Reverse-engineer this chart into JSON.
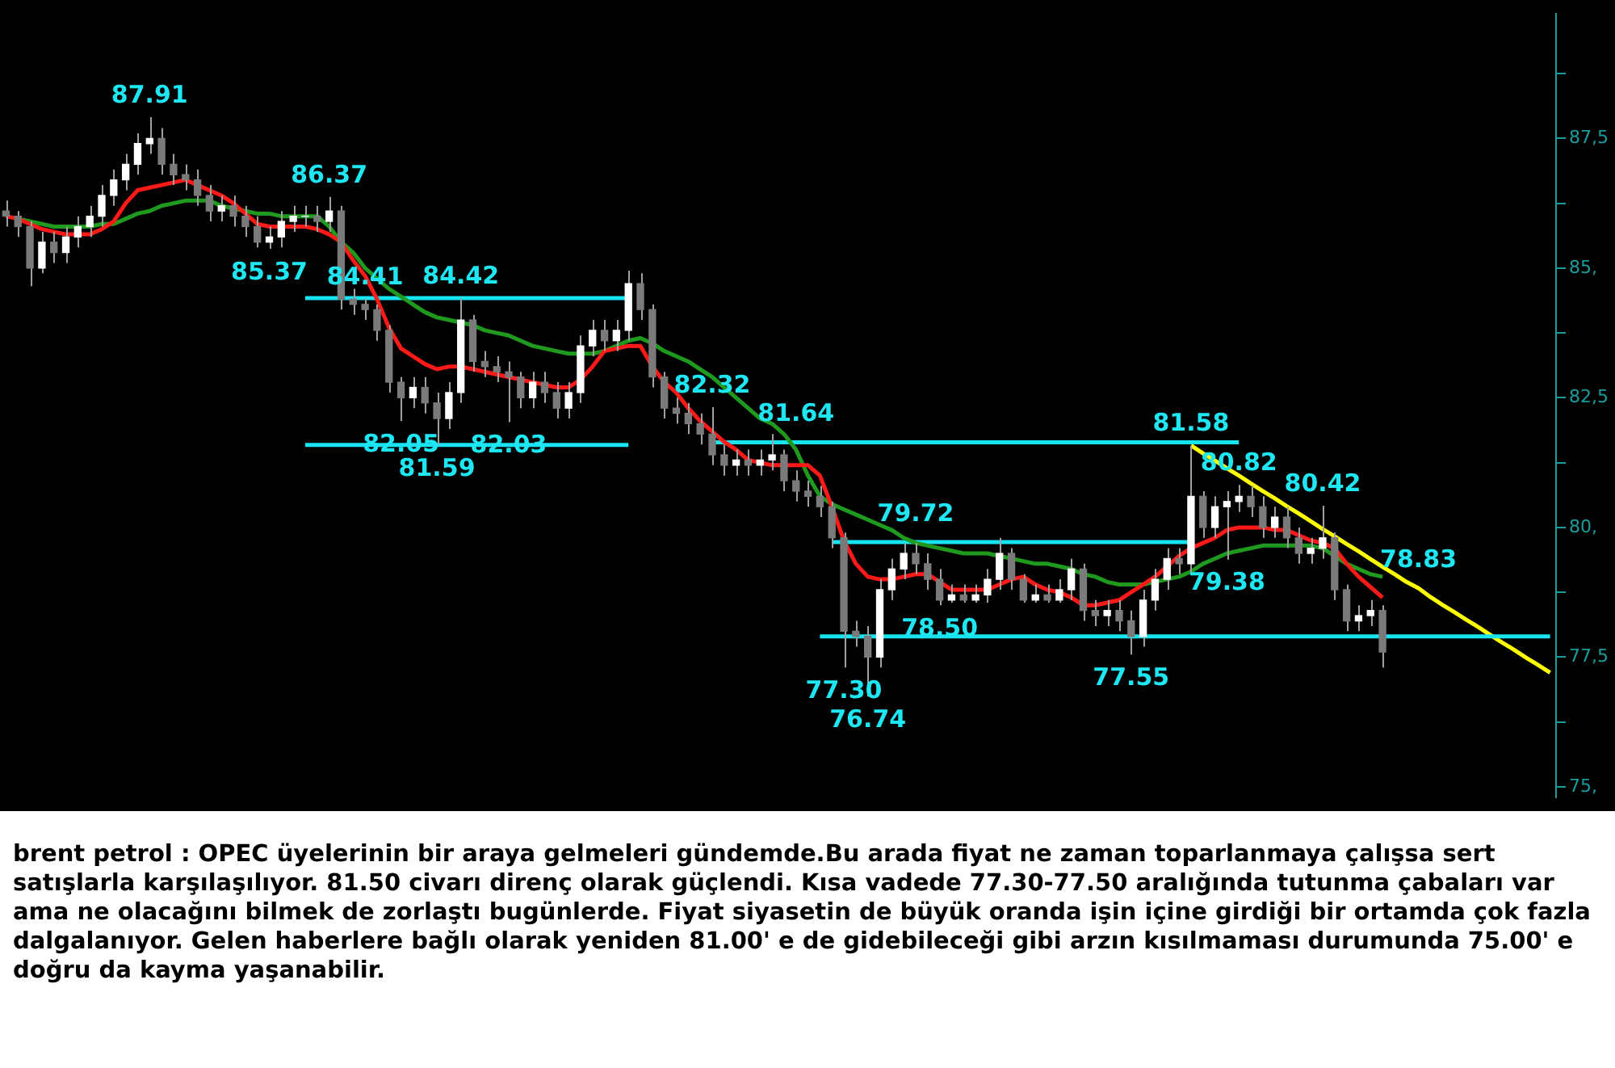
{
  "chart_data": {
    "type": "candlestick",
    "categories": [
      null,
      null,
      null,
      null,
      null,
      null,
      null,
      null,
      null,
      null,
      null,
      null,
      null,
      null,
      null,
      null,
      null,
      null,
      null,
      null,
      null,
      null,
      null,
      null,
      null,
      null,
      null,
      null,
      null,
      null,
      null,
      null,
      null,
      null,
      null,
      null,
      null,
      null,
      null,
      null,
      null,
      null,
      null,
      null,
      null,
      null,
      null,
      null,
      null,
      null,
      null,
      null,
      null,
      null,
      null,
      null,
      null,
      null,
      null,
      null,
      null,
      null,
      null,
      null,
      null,
      null,
      null,
      null,
      null,
      null,
      null,
      null,
      null,
      null,
      null,
      null,
      null,
      null,
      null,
      null,
      null,
      null,
      null,
      null,
      null,
      null,
      null,
      null,
      null,
      null,
      null,
      null,
      null,
      null,
      null,
      null,
      null,
      null,
      null,
      null,
      null,
      null,
      null,
      null,
      null,
      null,
      null,
      null,
      null,
      null,
      null,
      null,
      null,
      null,
      null,
      null,
      null,
      null,
      null,
      null,
      null,
      null,
      null,
      null,
      null,
      null,
      null,
      null,
      null,
      null
    ],
    "colors": [
      "#7a7a7a",
      "#7a7a7a",
      "#7a7a7a",
      "#ffffff",
      "#7a7a7a",
      "#ffffff",
      "#ffffff",
      "#ffffff",
      "#ffffff",
      "#ffffff",
      "#ffffff",
      "#ffffff",
      "#ffffff",
      "#7a7a7a",
      "#7a7a7a",
      "#7a7a7a",
      "#7a7a7a",
      "#7a7a7a",
      "#ffffff",
      "#7a7a7a",
      "#7a7a7a",
      "#7a7a7a",
      "#ffffff",
      "#ffffff",
      "#ffffff",
      "#ffffff",
      "#7a7a7a",
      "#ffffff",
      "#7a7a7a",
      "#7a7a7a",
      "#7a7a7a",
      "#7a7a7a",
      "#7a7a7a",
      "#7a7a7a",
      "#ffffff",
      "#7a7a7a",
      "#7a7a7a",
      "#ffffff",
      "#ffffff",
      "#7a7a7a",
      "#7a7a7a",
      "#7a7a7a",
      "#7a7a7a",
      "#7a7a7a",
      "#ffffff",
      "#7a7a7a",
      "#7a7a7a",
      "#ffffff",
      "#ffffff",
      "#ffffff",
      "#7a7a7a",
      "#ffffff",
      "#ffffff",
      "#7a7a7a",
      "#7a7a7a",
      "#7a7a7a",
      "#7a7a7a",
      "#7a7a7a",
      "#7a7a7a",
      "#7a7a7a",
      "#7a7a7a",
      "#ffffff",
      "#7a7a7a",
      "#ffffff",
      "#ffffff",
      "#7a7a7a",
      "#7a7a7a",
      "#7a7a7a",
      "#7a7a7a",
      "#7a7a7a",
      "#7a7a7a",
      "#7a7a7a",
      "#7a7a7a",
      "#ffffff",
      "#ffffff",
      "#ffffff",
      "#7a7a7a",
      "#7a7a7a",
      "#7a7a7a",
      "#ffffff",
      "#7a7a7a",
      "#ffffff",
      "#ffffff",
      "#ffffff",
      "#7a7a7a",
      "#7a7a7a",
      "#ffffff",
      "#7a7a7a",
      "#ffffff",
      "#ffffff",
      "#7a7a7a",
      "#7a7a7a",
      "#ffffff",
      "#7a7a7a",
      "#7a7a7a",
      "#ffffff",
      "#ffffff",
      "#ffffff",
      "#7a7a7a",
      "#ffffff",
      "#7a7a7a",
      "#ffffff",
      "#ffffff",
      "#ffffff",
      "#7a7a7a",
      "#7a7a7a",
      "#ffffff",
      "#7a7a7a",
      "#7a7a7a",
      "#ffffff",
      "#ffffff",
      "#7a7a7a",
      "#7a7a7a",
      "#ffffff",
      "#ffffff",
      "#7a7a7a",
      null,
      null,
      null,
      null,
      null,
      null,
      null,
      null,
      null,
      null,
      null,
      null,
      null,
      null
    ],
    "ohlc": [
      [
        86.1,
        86.3,
        85.8,
        86.0
      ],
      [
        86.0,
        86.1,
        85.6,
        85.8
      ],
      [
        85.8,
        85.9,
        84.65,
        85.0
      ],
      [
        85.0,
        85.7,
        84.9,
        85.5
      ],
      [
        85.5,
        85.7,
        85.1,
        85.3
      ],
      [
        85.3,
        85.8,
        85.1,
        85.6
      ],
      [
        85.6,
        86.0,
        85.4,
        85.8
      ],
      [
        85.8,
        86.2,
        85.6,
        86.0
      ],
      [
        86.0,
        86.6,
        85.8,
        86.4
      ],
      [
        86.4,
        86.9,
        86.2,
        86.7
      ],
      [
        86.7,
        87.2,
        86.5,
        87.0
      ],
      [
        87.0,
        87.6,
        86.8,
        87.4
      ],
      [
        87.4,
        87.91,
        87.2,
        87.5
      ],
      [
        87.5,
        87.7,
        86.8,
        87.0
      ],
      [
        87.0,
        87.2,
        86.6,
        86.8
      ],
      [
        86.8,
        87.0,
        86.5,
        86.7
      ],
      [
        86.7,
        86.9,
        86.2,
        86.4
      ],
      [
        86.4,
        86.6,
        85.9,
        86.1
      ],
      [
        86.1,
        86.4,
        85.9,
        86.2
      ],
      [
        86.2,
        86.4,
        85.8,
        86.0
      ],
      [
        86.0,
        86.2,
        85.6,
        85.8
      ],
      [
        85.8,
        86.0,
        85.4,
        85.5
      ],
      [
        85.5,
        85.8,
        85.37,
        85.6
      ],
      [
        85.6,
        86.1,
        85.4,
        85.9
      ],
      [
        85.9,
        86.2,
        85.7,
        86.0
      ],
      [
        86.0,
        86.2,
        85.8,
        86.0
      ],
      [
        86.0,
        86.2,
        85.7,
        85.9
      ],
      [
        85.9,
        86.37,
        85.7,
        86.1
      ],
      [
        86.1,
        86.2,
        84.2,
        84.4
      ],
      [
        84.4,
        84.6,
        84.1,
        84.3
      ],
      [
        84.3,
        84.41,
        84.0,
        84.2
      ],
      [
        84.2,
        84.3,
        83.6,
        83.8
      ],
      [
        83.8,
        83.9,
        82.6,
        82.8
      ],
      [
        82.8,
        82.9,
        82.05,
        82.5
      ],
      [
        82.5,
        82.9,
        82.3,
        82.7
      ],
      [
        82.7,
        82.9,
        82.2,
        82.4
      ],
      [
        82.4,
        82.6,
        81.59,
        82.1
      ],
      [
        82.1,
        82.8,
        81.9,
        82.6
      ],
      [
        82.6,
        84.42,
        82.4,
        84.0
      ],
      [
        84.0,
        84.1,
        83.0,
        83.2
      ],
      [
        83.2,
        83.4,
        82.9,
        83.1
      ],
      [
        83.1,
        83.3,
        82.8,
        83.0
      ],
      [
        83.0,
        83.2,
        82.03,
        82.9
      ],
      [
        82.9,
        83.0,
        82.3,
        82.5
      ],
      [
        82.5,
        83.0,
        82.3,
        82.8
      ],
      [
        82.8,
        83.0,
        82.4,
        82.6
      ],
      [
        82.6,
        82.8,
        82.1,
        82.3
      ],
      [
        82.3,
        82.8,
        82.1,
        82.6
      ],
      [
        82.6,
        83.7,
        82.4,
        83.5
      ],
      [
        83.5,
        84.0,
        83.3,
        83.8
      ],
      [
        83.8,
        84.0,
        83.4,
        83.6
      ],
      [
        83.6,
        84.0,
        83.4,
        83.8
      ],
      [
        83.8,
        84.95,
        83.6,
        84.7
      ],
      [
        84.7,
        84.9,
        84.0,
        84.2
      ],
      [
        84.2,
        84.3,
        82.7,
        82.9
      ],
      [
        82.9,
        83.0,
        82.1,
        82.3
      ],
      [
        82.3,
        82.5,
        82.0,
        82.2
      ],
      [
        82.2,
        82.4,
        81.8,
        82.0
      ],
      [
        82.0,
        82.2,
        81.6,
        81.8
      ],
      [
        81.8,
        82.32,
        81.2,
        81.4
      ],
      [
        81.4,
        81.6,
        81.0,
        81.2
      ],
      [
        81.2,
        81.5,
        81.0,
        81.3
      ],
      [
        81.3,
        81.5,
        81.0,
        81.2
      ],
      [
        81.2,
        81.5,
        81.0,
        81.3
      ],
      [
        81.3,
        81.8,
        81.1,
        81.4
      ],
      [
        81.4,
        81.5,
        80.7,
        80.9
      ],
      [
        80.9,
        81.1,
        80.5,
        80.7
      ],
      [
        80.7,
        80.9,
        80.4,
        80.6
      ],
      [
        80.6,
        80.8,
        80.2,
        80.4
      ],
      [
        80.4,
        80.5,
        79.6,
        79.8
      ],
      [
        79.8,
        79.9,
        77.3,
        78.0
      ],
      [
        78.0,
        78.2,
        77.7,
        77.9
      ],
      [
        77.9,
        78.1,
        76.74,
        77.5
      ],
      [
        77.5,
        79.0,
        77.3,
        78.8
      ],
      [
        78.8,
        79.4,
        78.6,
        79.2
      ],
      [
        79.2,
        79.7,
        79.0,
        79.5
      ],
      [
        79.5,
        79.7,
        79.1,
        79.3
      ],
      [
        79.3,
        79.5,
        78.8,
        79.0
      ],
      [
        79.0,
        79.2,
        78.5,
        78.6
      ],
      [
        78.6,
        78.9,
        78.55,
        78.7
      ],
      [
        78.7,
        78.9,
        78.55,
        78.6
      ],
      [
        78.6,
        78.9,
        78.55,
        78.7
      ],
      [
        78.7,
        79.2,
        78.55,
        79.0
      ],
      [
        79.0,
        79.8,
        78.8,
        79.5
      ],
      [
        79.5,
        79.6,
        78.8,
        79.0
      ],
      [
        79.0,
        79.1,
        78.55,
        78.6
      ],
      [
        78.6,
        78.9,
        78.55,
        78.7
      ],
      [
        78.7,
        78.9,
        78.55,
        78.6
      ],
      [
        78.6,
        79.0,
        78.55,
        78.8
      ],
      [
        78.8,
        79.4,
        78.6,
        79.2
      ],
      [
        79.2,
        79.3,
        78.2,
        78.4
      ],
      [
        78.4,
        78.6,
        78.1,
        78.3
      ],
      [
        78.3,
        78.6,
        78.1,
        78.4
      ],
      [
        78.4,
        78.6,
        78.0,
        78.2
      ],
      [
        78.2,
        78.4,
        77.55,
        77.9
      ],
      [
        77.9,
        78.8,
        77.7,
        78.6
      ],
      [
        78.6,
        79.2,
        78.4,
        79.0
      ],
      [
        79.0,
        79.6,
        78.8,
        79.4
      ],
      [
        79.4,
        79.6,
        79.1,
        79.3
      ],
      [
        79.3,
        81.58,
        79.1,
        80.6
      ],
      [
        80.6,
        80.7,
        79.8,
        80.0
      ],
      [
        80.0,
        80.6,
        79.8,
        80.4
      ],
      [
        80.4,
        80.7,
        79.38,
        80.5
      ],
      [
        80.5,
        80.82,
        80.3,
        80.6
      ],
      [
        80.6,
        80.8,
        80.2,
        80.4
      ],
      [
        80.4,
        80.6,
        79.8,
        80.0
      ],
      [
        80.0,
        80.4,
        79.8,
        80.2
      ],
      [
        80.2,
        80.4,
        79.6,
        79.8
      ],
      [
        79.8,
        80.0,
        79.3,
        79.5
      ],
      [
        79.5,
        79.8,
        79.3,
        79.6
      ],
      [
        79.6,
        80.42,
        79.4,
        79.8
      ],
      [
        79.8,
        79.9,
        78.6,
        78.8
      ],
      [
        78.8,
        78.9,
        78.0,
        78.2
      ],
      [
        78.2,
        78.5,
        78.0,
        78.3
      ],
      [
        78.3,
        78.6,
        78.1,
        78.4
      ],
      [
        78.4,
        78.5,
        77.3,
        77.6
      ],
      null,
      null,
      null,
      null,
      null,
      null,
      null,
      null,
      null,
      null,
      null,
      null,
      null,
      null
    ],
    "value_labels": [
      null,
      null,
      null,
      null,
      null,
      null,
      null,
      null,
      null,
      null,
      null,
      null,
      "87.91",
      null,
      null,
      null,
      null,
      null,
      null,
      null,
      null,
      null,
      "85.37",
      null,
      null,
      null,
      null,
      "86.37",
      null,
      null,
      "84.41",
      null,
      null,
      "82.05",
      null,
      null,
      "81.59",
      null,
      "84.42",
      null,
      null,
      null,
      "82.03",
      null,
      null,
      null,
      null,
      null,
      null,
      null,
      null,
      null,
      null,
      null,
      null,
      null,
      null,
      null,
      null,
      "82.32",
      null,
      null,
      null,
      null,
      null,
      null,
      null,
      null,
      null,
      null,
      "77.30",
      null,
      "76.74",
      null,
      null,
      null,
      null,
      null,
      "78.50",
      null,
      null,
      null,
      null,
      null,
      null,
      null,
      null,
      null,
      null,
      null,
      null,
      null,
      null,
      null,
      "77.55",
      null,
      null,
      null,
      null,
      "81.58",
      null,
      null,
      "79.38",
      "80.82",
      null,
      null,
      null,
      null,
      null,
      null,
      "80.42",
      null,
      null,
      null,
      null,
      null,
      null,
      null,
      null,
      null,
      null,
      null,
      null,
      null,
      null,
      null,
      null,
      null,
      null,
      null
    ],
    "series": [
      {
        "type": "line",
        "color": "#ff1a1a",
        "values": [
          86.0,
          85.95,
          85.85,
          85.75,
          85.7,
          85.65,
          85.65,
          85.65,
          85.75,
          85.9,
          86.25,
          86.5,
          86.55,
          86.6,
          86.65,
          86.7,
          86.6,
          86.5,
          86.4,
          86.25,
          86.05,
          85.85,
          85.8,
          85.8,
          85.8,
          85.8,
          85.75,
          85.65,
          85.5,
          85.15,
          84.85,
          84.4,
          83.85,
          83.45,
          83.3,
          83.15,
          83.05,
          83.1,
          83.1,
          83.05,
          83.0,
          82.95,
          82.9,
          82.85,
          82.8,
          82.75,
          82.7,
          82.7,
          82.85,
          83.1,
          83.4,
          83.45,
          83.5,
          83.5,
          83.1,
          82.8,
          82.6,
          82.3,
          82.05,
          81.85,
          81.65,
          81.5,
          81.3,
          81.25,
          81.2,
          81.2,
          81.2,
          81.2,
          81.0,
          80.4,
          79.75,
          79.3,
          79.05,
          79.0,
          79.0,
          79.05,
          79.1,
          79.1,
          78.95,
          78.8,
          78.8,
          78.8,
          78.8,
          78.9,
          79.0,
          79.05,
          78.9,
          78.8,
          78.75,
          78.65,
          78.5,
          78.5,
          78.55,
          78.6,
          78.75,
          78.9,
          79.05,
          79.25,
          79.45,
          79.6,
          79.7,
          79.8,
          79.95,
          80.0,
          80.0,
          80.0,
          79.95,
          79.95,
          79.85,
          79.75,
          79.7,
          79.6,
          79.3,
          79.05,
          78.85,
          78.65,
          null,
          null,
          null,
          null,
          null,
          null,
          null,
          null,
          null,
          null,
          null,
          null,
          null,
          null
        ]
      },
      {
        "type": "line",
        "color": "#1f9a1f",
        "values": [
          null,
          85.95,
          85.9,
          85.85,
          85.8,
          85.8,
          85.8,
          85.8,
          85.85,
          85.85,
          85.95,
          86.05,
          86.1,
          86.2,
          86.25,
          86.3,
          86.3,
          86.3,
          86.2,
          86.15,
          86.1,
          86.05,
          86.05,
          86.0,
          86.0,
          86.0,
          86.0,
          85.8,
          85.5,
          85.3,
          85.0,
          84.8,
          84.6,
          84.45,
          84.3,
          84.15,
          84.05,
          84.0,
          83.95,
          83.9,
          83.8,
          83.75,
          83.7,
          83.6,
          83.5,
          83.45,
          83.4,
          83.35,
          83.35,
          83.35,
          83.4,
          83.5,
          83.6,
          83.65,
          83.55,
          83.4,
          83.3,
          83.2,
          83.05,
          82.9,
          82.7,
          82.5,
          82.3,
          82.1,
          82.0,
          81.8,
          81.5,
          81.0,
          80.6,
          80.45,
          80.35,
          80.25,
          80.15,
          80.05,
          79.95,
          79.8,
          79.7,
          79.65,
          79.6,
          79.55,
          79.5,
          79.5,
          79.5,
          79.45,
          79.4,
          79.35,
          79.3,
          79.3,
          79.25,
          79.2,
          79.1,
          79.05,
          78.95,
          78.9,
          78.9,
          78.9,
          78.95,
          79.0,
          79.05,
          79.15,
          79.3,
          79.4,
          79.5,
          79.55,
          79.6,
          79.65,
          79.65,
          79.65,
          79.65,
          79.65,
          79.6,
          79.45,
          79.3,
          79.2,
          79.1,
          79.05,
          null,
          null,
          null,
          null,
          null,
          null,
          null,
          null,
          null,
          null,
          null,
          null,
          null,
          null
        ]
      },
      {
        "type": "line",
        "color": "#17e4f0",
        "values": [
          null,
          null,
          null,
          null,
          null,
          null,
          null,
          null,
          null,
          null,
          null,
          null,
          null,
          null,
          null,
          null,
          null,
          null,
          null,
          null,
          null,
          null,
          null,
          null,
          null,
          84.42,
          84.42,
          84.42,
          84.42,
          84.42,
          84.42,
          84.42,
          84.42,
          84.42,
          84.42,
          84.42,
          84.42,
          84.42,
          84.42,
          84.42,
          84.42,
          84.42,
          84.42,
          84.42,
          84.42,
          84.42,
          84.42,
          84.42,
          84.42,
          84.42,
          84.42,
          84.42,
          84.42,
          null,
          null,
          null,
          null,
          null,
          null,
          null,
          null,
          null,
          null,
          null,
          null,
          null,
          null,
          null,
          null,
          null,
          null,
          null,
          null,
          null,
          null,
          null,
          null,
          null,
          null,
          null,
          null,
          null,
          null,
          null,
          null,
          null,
          null,
          null,
          null,
          null,
          null,
          null,
          null,
          null,
          null,
          null,
          null,
          null,
          null,
          null,
          null,
          null,
          null,
          null,
          null,
          null,
          null,
          null,
          null,
          null,
          null,
          null,
          null,
          null,
          null,
          null,
          null,
          null,
          null,
          null,
          null,
          null,
          null,
          null,
          null,
          null,
          null,
          null,
          null,
          null
        ]
      },
      {
        "type": "line",
        "color": "#17e4f0",
        "values": [
          null,
          null,
          null,
          null,
          null,
          null,
          null,
          null,
          null,
          null,
          null,
          null,
          null,
          null,
          null,
          null,
          null,
          null,
          null,
          null,
          null,
          null,
          null,
          null,
          null,
          81.59,
          81.59,
          81.59,
          81.59,
          81.59,
          81.59,
          81.59,
          81.59,
          81.59,
          81.59,
          81.59,
          81.59,
          81.59,
          81.59,
          81.59,
          81.59,
          81.59,
          81.59,
          81.59,
          81.59,
          81.59,
          81.59,
          81.59,
          81.59,
          81.59,
          81.59,
          81.59,
          81.59,
          null,
          null,
          null,
          null,
          null,
          null,
          null,
          null,
          null,
          null,
          null,
          null,
          null,
          null,
          null,
          null,
          null,
          null,
          null,
          null,
          null,
          null,
          null,
          null,
          null,
          null,
          null,
          null,
          null,
          null,
          null,
          null,
          null,
          null,
          null,
          null,
          null,
          null,
          null,
          null,
          null,
          null,
          null,
          null,
          null,
          null,
          null,
          null,
          null,
          null,
          null,
          null,
          null,
          null,
          null,
          null,
          null,
          null,
          null,
          null,
          null,
          null,
          null,
          null,
          null,
          null,
          null,
          null,
          null,
          null,
          null,
          null,
          null,
          null,
          null,
          null,
          null
        ]
      },
      {
        "type": "line",
        "color": "#17e4f0",
        "values": [
          null,
          null,
          null,
          null,
          null,
          null,
          null,
          null,
          null,
          null,
          null,
          null,
          null,
          null,
          null,
          null,
          null,
          null,
          null,
          null,
          null,
          null,
          null,
          null,
          null,
          null,
          null,
          null,
          null,
          null,
          null,
          null,
          null,
          null,
          null,
          null,
          null,
          null,
          null,
          null,
          null,
          null,
          null,
          null,
          null,
          null,
          null,
          null,
          null,
          null,
          null,
          null,
          null,
          null,
          null,
          null,
          null,
          null,
          null,
          81.64,
          81.64,
          81.64,
          81.64,
          81.64,
          81.64,
          81.64,
          81.64,
          81.64,
          81.64,
          81.64,
          81.64,
          81.64,
          81.64,
          81.64,
          81.64,
          81.64,
          81.64,
          81.64,
          81.64,
          81.64,
          81.64,
          81.64,
          81.64,
          81.64,
          81.64,
          81.64,
          81.64,
          81.64,
          81.64,
          81.64,
          81.64,
          81.64,
          81.64,
          81.64,
          81.64,
          81.64,
          81.64,
          81.64,
          81.64,
          81.64,
          81.64,
          81.64,
          81.64,
          81.64,
          null,
          null,
          null,
          null,
          null,
          null,
          null,
          null,
          null,
          null,
          null,
          null,
          null,
          null,
          null,
          null,
          null,
          null,
          null,
          null,
          null,
          null,
          null,
          null,
          null,
          null
        ],
        "value_labels": [
          null,
          null,
          null,
          null,
          null,
          null,
          null,
          null,
          null,
          null,
          null,
          null,
          null,
          null,
          null,
          null,
          null,
          null,
          null,
          null,
          null,
          null,
          null,
          null,
          null,
          null,
          null,
          null,
          null,
          null,
          null,
          null,
          null,
          null,
          null,
          null,
          null,
          null,
          null,
          null,
          null,
          null,
          null,
          null,
          null,
          null,
          null,
          null,
          null,
          null,
          null,
          null,
          null,
          null,
          null,
          null,
          null,
          null,
          null,
          null,
          null,
          null,
          null,
          null,
          null,
          null,
          "81.64",
          null,
          null,
          null,
          null,
          null,
          null,
          null,
          null,
          null,
          null,
          null,
          null,
          null,
          null,
          null,
          null,
          null,
          null,
          null,
          null,
          null,
          null,
          null,
          null,
          null,
          null,
          null,
          null,
          null,
          null,
          null,
          null,
          null,
          null,
          null,
          null,
          null,
          null,
          null,
          null,
          null,
          null,
          null,
          null,
          null,
          null,
          null,
          null,
          null,
          null,
          null,
          null,
          null,
          null,
          null,
          null,
          null,
          null,
          null,
          null,
          null,
          null,
          null
        ]
      },
      {
        "type": "line",
        "color": "#17e4f0",
        "values": [
          null,
          null,
          null,
          null,
          null,
          null,
          null,
          null,
          null,
          null,
          null,
          null,
          null,
          null,
          null,
          null,
          null,
          null,
          null,
          null,
          null,
          null,
          null,
          null,
          null,
          null,
          null,
          null,
          null,
          null,
          null,
          null,
          null,
          null,
          null,
          null,
          null,
          null,
          null,
          null,
          null,
          null,
          null,
          null,
          null,
          null,
          null,
          null,
          null,
          null,
          null,
          null,
          null,
          null,
          null,
          null,
          null,
          null,
          null,
          null,
          null,
          null,
          null,
          null,
          null,
          null,
          null,
          null,
          null,
          79.72,
          79.72,
          79.72,
          79.72,
          79.72,
          79.72,
          79.72,
          79.72,
          79.72,
          79.72,
          79.72,
          79.72,
          79.72,
          79.72,
          79.72,
          79.72,
          79.72,
          79.72,
          79.72,
          79.72,
          79.72,
          79.72,
          79.72,
          79.72,
          79.72,
          79.72,
          79.72,
          79.72,
          79.72,
          79.72,
          79.72,
          null,
          null,
          null,
          null,
          null,
          null,
          null,
          null,
          null,
          null,
          null,
          null,
          null,
          null,
          null,
          null,
          null,
          null,
          null,
          null,
          null,
          null,
          null,
          null,
          null,
          null,
          null,
          null,
          null,
          null
        ],
        "value_labels": [
          null,
          null,
          null,
          null,
          null,
          null,
          null,
          null,
          null,
          null,
          null,
          null,
          null,
          null,
          null,
          null,
          null,
          null,
          null,
          null,
          null,
          null,
          null,
          null,
          null,
          null,
          null,
          null,
          null,
          null,
          null,
          null,
          null,
          null,
          null,
          null,
          null,
          null,
          null,
          null,
          null,
          null,
          null,
          null,
          null,
          null,
          null,
          null,
          null,
          null,
          null,
          null,
          null,
          null,
          null,
          null,
          null,
          null,
          null,
          null,
          null,
          null,
          null,
          null,
          null,
          null,
          null,
          null,
          null,
          null,
          null,
          null,
          null,
          null,
          null,
          null,
          "79.72",
          null,
          null,
          null,
          null,
          null,
          null,
          null,
          null,
          null,
          null,
          null,
          null,
          null,
          null,
          null,
          null,
          null,
          null,
          null,
          null,
          null,
          null,
          null,
          null,
          null,
          null,
          null,
          null,
          null,
          null,
          null,
          null,
          null,
          null,
          null,
          null,
          null,
          null,
          null,
          null,
          null,
          null,
          null,
          null,
          null,
          null,
          null,
          null,
          null,
          null,
          null,
          null,
          null
        ]
      },
      {
        "type": "line",
        "color": "#17e4f0",
        "values": [
          null,
          null,
          null,
          null,
          null,
          null,
          null,
          null,
          null,
          null,
          null,
          null,
          null,
          null,
          null,
          null,
          null,
          null,
          null,
          null,
          null,
          null,
          null,
          null,
          null,
          null,
          null,
          null,
          null,
          null,
          null,
          null,
          null,
          null,
          null,
          null,
          null,
          null,
          null,
          null,
          null,
          null,
          null,
          null,
          null,
          null,
          null,
          null,
          null,
          null,
          null,
          null,
          null,
          null,
          null,
          null,
          null,
          null,
          null,
          null,
          null,
          null,
          null,
          null,
          null,
          null,
          null,
          null,
          77.9,
          77.9,
          77.9,
          77.9,
          77.9,
          77.9,
          77.9,
          77.9,
          77.9,
          77.9,
          77.9,
          77.9,
          77.9,
          77.9,
          77.9,
          77.9,
          77.9,
          77.9,
          77.9,
          77.9,
          77.9,
          77.9,
          77.9,
          77.9,
          77.9,
          77.9,
          77.9,
          77.9,
          77.9,
          77.9,
          77.9,
          77.9,
          77.9,
          77.9,
          77.9,
          77.9,
          77.9,
          77.9,
          77.9,
          77.9,
          77.9,
          77.9,
          77.9,
          77.9,
          77.9,
          77.9,
          77.9,
          77.9,
          77.9,
          77.9,
          77.9,
          77.9,
          77.9,
          77.9,
          77.9,
          77.9,
          77.9,
          77.9,
          77.9,
          77.9,
          77.9,
          77.9
        ]
      },
      {
        "type": "line",
        "color": "#ffff00",
        "values": [
          null,
          null,
          null,
          null,
          null,
          null,
          null,
          null,
          null,
          null,
          null,
          null,
          null,
          null,
          null,
          null,
          null,
          null,
          null,
          null,
          null,
          null,
          null,
          null,
          null,
          null,
          null,
          null,
          null,
          null,
          null,
          null,
          null,
          null,
          null,
          null,
          null,
          null,
          null,
          null,
          null,
          null,
          null,
          null,
          null,
          null,
          null,
          null,
          null,
          null,
          null,
          null,
          null,
          null,
          null,
          null,
          null,
          null,
          null,
          null,
          null,
          null,
          null,
          null,
          null,
          null,
          null,
          null,
          null,
          null,
          null,
          null,
          null,
          null,
          null,
          null,
          null,
          null,
          null,
          null,
          null,
          null,
          null,
          null,
          null,
          null,
          null,
          null,
          null,
          null,
          null,
          null,
          null,
          null,
          null,
          null,
          null,
          null,
          null,
          81.58,
          81.43,
          81.29,
          81.14,
          81.0,
          80.85,
          80.7,
          80.56,
          80.41,
          80.27,
          80.12,
          79.97,
          79.83,
          79.68,
          79.54,
          79.39,
          79.24,
          79.1,
          78.95,
          78.83,
          78.66,
          78.51,
          78.37,
          78.22,
          78.08,
          77.93,
          77.78,
          77.64,
          77.49,
          77.35,
          77.2
        ],
        "value_labels": [
          null,
          null,
          null,
          null,
          null,
          null,
          null,
          null,
          null,
          null,
          null,
          null,
          null,
          null,
          null,
          null,
          null,
          null,
          null,
          null,
          null,
          null,
          null,
          null,
          null,
          null,
          null,
          null,
          null,
          null,
          null,
          null,
          null,
          null,
          null,
          null,
          null,
          null,
          null,
          null,
          null,
          null,
          null,
          null,
          null,
          null,
          null,
          null,
          null,
          null,
          null,
          null,
          null,
          null,
          null,
          null,
          null,
          null,
          null,
          null,
          null,
          null,
          null,
          null,
          null,
          null,
          null,
          null,
          null,
          null,
          null,
          null,
          null,
          null,
          null,
          null,
          null,
          null,
          null,
          null,
          null,
          null,
          null,
          null,
          null,
          null,
          null,
          null,
          null,
          null,
          null,
          null,
          null,
          null,
          null,
          null,
          null,
          null,
          null,
          null,
          null,
          null,
          null,
          null,
          null,
          null,
          null,
          null,
          null,
          null,
          null,
          null,
          null,
          null,
          null,
          null,
          null,
          null,
          "78.83",
          null,
          null,
          null,
          null,
          null,
          null,
          null,
          null,
          null,
          null,
          null
        ]
      }
    ],
    "ylim": [
      74.8,
      89.9
    ],
    "yticks": [
      {
        "value": 75,
        "label": "75,"
      },
      {
        "value": 76.25,
        "label": null
      },
      {
        "value": 77.5,
        "label": "77,5"
      },
      {
        "value": 78.75,
        "label": null
      },
      {
        "value": 80,
        "label": "80,"
      },
      {
        "value": 81.25,
        "label": null
      },
      {
        "value": 82.5,
        "label": "82,5"
      },
      {
        "value": 83.75,
        "label": null
      },
      {
        "value": 85,
        "label": "85,"
      },
      {
        "value": 86.25,
        "label": null
      },
      {
        "value": 87.5,
        "label": "87,5"
      },
      {
        "value": 88.75,
        "label": null
      }
    ],
    "tick_labels": "y",
    "annotations": [
      "brent petrol : OPEC üyelerinin bir araya gelmeleri gündemde.Bu arada fiyat ne zaman toparlanmaya çalışsa sert satışlarla karşılaşılıyor. 81.50 civarı direnç olarak güçlendi. Kısa vadede 77.30-77.50 aralığında tutunma çabaları var ama ne olacağını bilmek de zorlaştı bugünlerde. Fiyat siyasetin de büyük oranda işin içine girdiği bir ortamda çok fazla dalgalanıyor. Gelen haberlere bağlı olarak yeniden 81.00' e de gidebileceği gibi arzın kısılmaması durumunda 75.00' e doğru da kayma yaşanabilir."
    ]
  }
}
